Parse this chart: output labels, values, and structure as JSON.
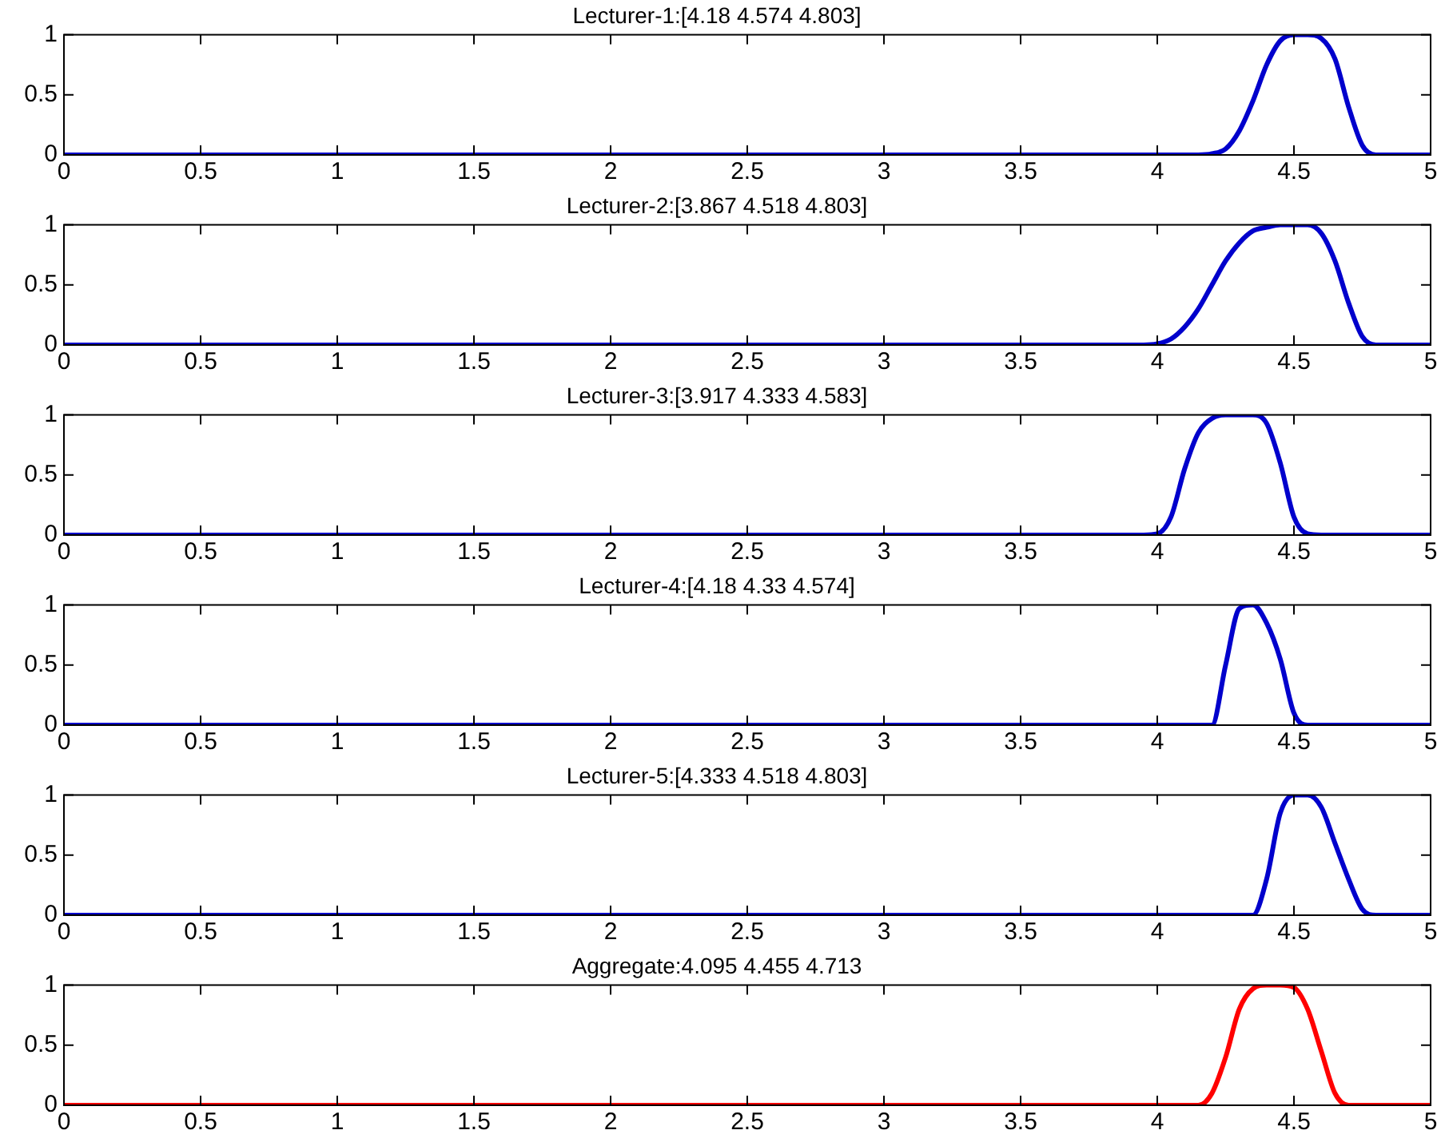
{
  "chart_data": [
    {
      "type": "line",
      "title": "Lecturer-1:[4.18 4.574 4.803]",
      "x": [
        0,
        3.8,
        3.85,
        3.9,
        3.95,
        4,
        4.05,
        4.1,
        4.15,
        4.2,
        4.25,
        4.3,
        4.35,
        4.4,
        4.45,
        4.5,
        4.55,
        4.6,
        4.65,
        4.7,
        4.75,
        4.8,
        4.85,
        4.9,
        5
      ],
      "series": [
        {
          "color": "#0000cc",
          "values": [
            0,
            0,
            0,
            0,
            0,
            0,
            0,
            0,
            0,
            0.01,
            0.05,
            0.2,
            0.45,
            0.75,
            0.95,
            1,
            1,
            0.97,
            0.8,
            0.4,
            0.08,
            0,
            0,
            0,
            0
          ]
        }
      ],
      "xlim": [
        0,
        5
      ],
      "xticks": [
        0,
        0.5,
        1,
        1.5,
        2,
        2.5,
        3,
        3.5,
        4,
        4.5,
        5
      ],
      "ylim": [
        0,
        1
      ],
      "yticks": [
        0,
        0.5,
        1
      ]
    },
    {
      "type": "line",
      "title": "Lecturer-2:[3.867 4.518 4.803]",
      "x": [
        0,
        3.8,
        3.85,
        3.9,
        3.95,
        4,
        4.05,
        4.1,
        4.15,
        4.2,
        4.25,
        4.3,
        4.35,
        4.4,
        4.45,
        4.5,
        4.55,
        4.6,
        4.65,
        4.7,
        4.75,
        4.8,
        4.85,
        4.9,
        5
      ],
      "series": [
        {
          "color": "#0000cc",
          "values": [
            0,
            0,
            0,
            0,
            0,
            0.01,
            0.05,
            0.15,
            0.3,
            0.5,
            0.7,
            0.85,
            0.95,
            0.98,
            1,
            1,
            1,
            0.93,
            0.7,
            0.35,
            0.07,
            0,
            0,
            0,
            0
          ]
        }
      ],
      "xlim": [
        0,
        5
      ],
      "xticks": [
        0,
        0.5,
        1,
        1.5,
        2,
        2.5,
        3,
        3.5,
        4,
        4.5,
        5
      ],
      "ylim": [
        0,
        1
      ],
      "yticks": [
        0,
        0.5,
        1
      ]
    },
    {
      "type": "line",
      "title": "Lecturer-3:[3.917 4.333 4.583]",
      "x": [
        0,
        3.8,
        3.85,
        3.9,
        3.95,
        4,
        4.05,
        4.1,
        4.15,
        4.2,
        4.25,
        4.3,
        4.35,
        4.4,
        4.45,
        4.5,
        4.55,
        4.6,
        4.65,
        4.7,
        4.75,
        4.8,
        4.85,
        4.9,
        5
      ],
      "series": [
        {
          "color": "#0000cc",
          "values": [
            0,
            0,
            0,
            0,
            0,
            0.01,
            0.15,
            0.55,
            0.85,
            0.97,
            1,
            1,
            1,
            0.93,
            0.6,
            0.15,
            0.01,
            0,
            0,
            0,
            0,
            0,
            0,
            0,
            0
          ]
        }
      ],
      "xlim": [
        0,
        5
      ],
      "xticks": [
        0,
        0.5,
        1,
        1.5,
        2,
        2.5,
        3,
        3.5,
        4,
        4.5,
        5
      ],
      "ylim": [
        0,
        1
      ],
      "yticks": [
        0,
        0.5,
        1
      ]
    },
    {
      "type": "line",
      "title": "Lecturer-4:[4.18 4.33 4.574]",
      "x": [
        0,
        3.8,
        3.85,
        3.9,
        3.95,
        4,
        4.05,
        4.1,
        4.15,
        4.2,
        4.25,
        4.3,
        4.35,
        4.4,
        4.45,
        4.5,
        4.55,
        4.6,
        4.65,
        4.7,
        4.75,
        4.8,
        4.85,
        4.9,
        5
      ],
      "series": [
        {
          "color": "#0000cc",
          "values": [
            0,
            0,
            0,
            0,
            0,
            0,
            0,
            0,
            0,
            0,
            0.5,
            0.97,
            1,
            0.85,
            0.55,
            0.1,
            0,
            0,
            0,
            0,
            0,
            0,
            0,
            0,
            0
          ]
        }
      ],
      "xlim": [
        0,
        5
      ],
      "xticks": [
        0,
        0.5,
        1,
        1.5,
        2,
        2.5,
        3,
        3.5,
        4,
        4.5,
        5
      ],
      "ylim": [
        0,
        1
      ],
      "yticks": [
        0,
        0.5,
        1
      ]
    },
    {
      "type": "line",
      "title": "Lecturer-5:[4.333 4.518 4.803]",
      "x": [
        0,
        3.8,
        3.85,
        3.9,
        3.95,
        4,
        4.05,
        4.1,
        4.15,
        4.2,
        4.25,
        4.3,
        4.35,
        4.4,
        4.45,
        4.5,
        4.55,
        4.6,
        4.65,
        4.7,
        4.75,
        4.8,
        4.85,
        4.9,
        5
      ],
      "series": [
        {
          "color": "#0000cc",
          "values": [
            0,
            0,
            0,
            0,
            0,
            0,
            0,
            0,
            0,
            0,
            0,
            0,
            0,
            0.3,
            0.85,
            1,
            1,
            0.9,
            0.6,
            0.3,
            0.05,
            0,
            0,
            0,
            0
          ]
        }
      ],
      "xlim": [
        0,
        5
      ],
      "xticks": [
        0,
        0.5,
        1,
        1.5,
        2,
        2.5,
        3,
        3.5,
        4,
        4.5,
        5
      ],
      "ylim": [
        0,
        1
      ],
      "yticks": [
        0,
        0.5,
        1
      ]
    },
    {
      "type": "line",
      "title": "Aggregate:4.095 4.455 4.713",
      "x": [
        0,
        3.8,
        3.85,
        3.9,
        3.95,
        4,
        4.05,
        4.1,
        4.15,
        4.2,
        4.25,
        4.3,
        4.35,
        4.4,
        4.45,
        4.5,
        4.55,
        4.6,
        4.65,
        4.7,
        4.75,
        4.8,
        4.85,
        4.9,
        5
      ],
      "series": [
        {
          "color": "#ff0000",
          "values": [
            0,
            0,
            0,
            0,
            0,
            0,
            0,
            0,
            0,
            0.1,
            0.4,
            0.8,
            0.97,
            1,
            1,
            0.98,
            0.8,
            0.45,
            0.1,
            0,
            0,
            0,
            0,
            0,
            0
          ]
        }
      ],
      "xlim": [
        0,
        5
      ],
      "xticks": [
        0,
        0.5,
        1,
        1.5,
        2,
        2.5,
        3,
        3.5,
        4,
        4.5,
        5
      ],
      "ylim": [
        0,
        1
      ],
      "yticks": [
        0,
        0.5,
        1
      ]
    }
  ]
}
